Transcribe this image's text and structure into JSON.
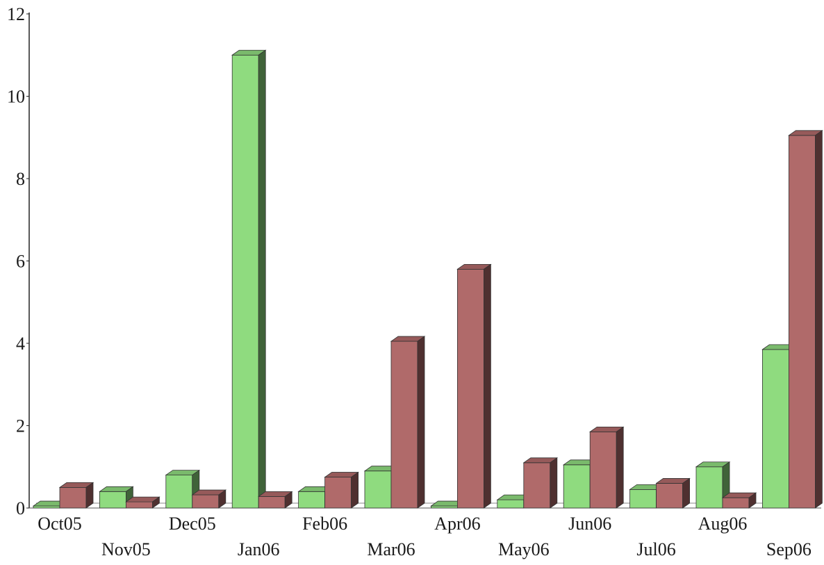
{
  "chart_data": {
    "type": "bar",
    "title": "",
    "xlabel": "",
    "ylabel": "",
    "ylim": [
      0,
      12
    ],
    "yticks": [
      0,
      2,
      4,
      6,
      8,
      10,
      12
    ],
    "yticks_labels": [
      "0",
      "2",
      "4",
      "6",
      "8",
      "10",
      "12"
    ],
    "grid": false,
    "legend": "none",
    "style": "3d-bars",
    "categories": [
      "Oct05",
      "Nov05",
      "Dec05",
      "Jan06",
      "Feb06",
      "Mar06",
      "Apr06",
      "May06",
      "Jun06",
      "Jul06",
      "Aug06",
      "Sep06"
    ],
    "series": [
      {
        "color": "#8fdb7f",
        "values": [
          0.05,
          0.4,
          0.8,
          11.0,
          0.4,
          0.9,
          0.05,
          0.2,
          1.05,
          0.45,
          1.0,
          3.85
        ]
      },
      {
        "color": "#b06a6a",
        "values": [
          0.5,
          0.15,
          0.32,
          0.28,
          0.75,
          4.05,
          5.8,
          1.1,
          1.85,
          0.6,
          0.25,
          9.05
        ]
      }
    ]
  }
}
